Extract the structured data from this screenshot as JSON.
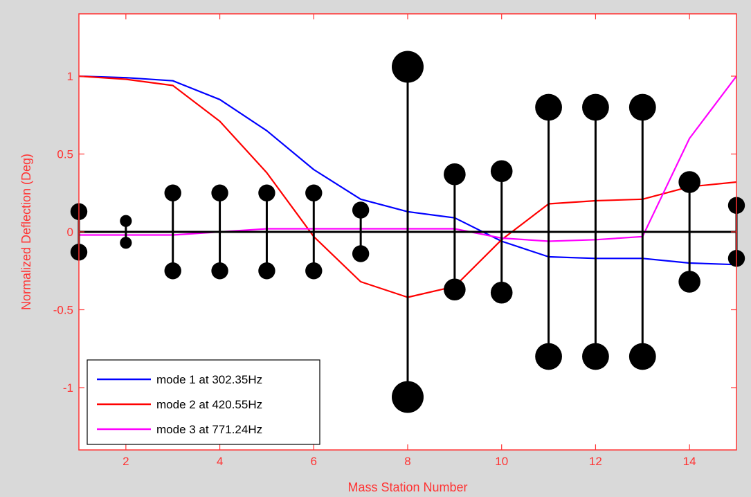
{
  "chart_data": {
    "type": "line",
    "xlabel": "Mass Station Number",
    "ylabel": "Normalized Deflection (Deg)",
    "xlim": [
      1,
      15
    ],
    "ylim": [
      -1.4,
      1.4
    ],
    "x_ticks": [
      2,
      4,
      6,
      8,
      10,
      12,
      14
    ],
    "y_ticks": [
      -1,
      -0.5,
      0,
      0.5,
      1
    ],
    "grid": false,
    "legend_position": "bottom-left",
    "colors": {
      "axes": "#ff3333",
      "baseline": "#000000",
      "background": "#ffffff",
      "frame": "#d9d9d9"
    },
    "series": [
      {
        "name": "mode 1 at 302.35Hz",
        "color": "#0000ff",
        "x": [
          1,
          2,
          3,
          4,
          5,
          6,
          7,
          8,
          9,
          10,
          11,
          12,
          13,
          14,
          15
        ],
        "y": [
          1.0,
          0.99,
          0.97,
          0.85,
          0.65,
          0.4,
          0.21,
          0.13,
          0.09,
          -0.06,
          -0.16,
          -0.17,
          -0.17,
          -0.2,
          -0.21
        ]
      },
      {
        "name": "mode 2 at 420.55Hz",
        "color": "#ff0000",
        "x": [
          1,
          2,
          3,
          4,
          5,
          6,
          7,
          8,
          9,
          10,
          11,
          12,
          13,
          14,
          15
        ],
        "y": [
          1.0,
          0.98,
          0.94,
          0.71,
          0.38,
          -0.03,
          -0.32,
          -0.42,
          -0.35,
          -0.05,
          0.18,
          0.2,
          0.21,
          0.29,
          0.32
        ]
      },
      {
        "name": "mode 3 at 771.24Hz",
        "color": "#ff00ff",
        "x": [
          1,
          2,
          3,
          4,
          5,
          6,
          7,
          8,
          9,
          10,
          11,
          12,
          13,
          14,
          15
        ],
        "y": [
          -0.02,
          -0.02,
          -0.02,
          0.0,
          0.02,
          0.02,
          0.02,
          0.02,
          0.02,
          -0.04,
          -0.06,
          -0.05,
          -0.03,
          0.6,
          1.0
        ]
      }
    ],
    "stations": {
      "name": "mass stations",
      "color": "#000000",
      "x": [
        1,
        2,
        3,
        4,
        5,
        6,
        7,
        8,
        9,
        10,
        11,
        12,
        13,
        14,
        15
      ],
      "half_height": [
        0.13,
        0.07,
        0.25,
        0.25,
        0.25,
        0.25,
        0.14,
        1.06,
        0.37,
        0.39,
        0.8,
        0.8,
        0.8,
        0.32,
        0.17
      ],
      "marker_size": [
        2,
        1,
        2,
        2,
        2,
        2,
        2,
        5,
        3,
        3,
        4,
        4,
        4,
        3,
        2
      ]
    }
  }
}
